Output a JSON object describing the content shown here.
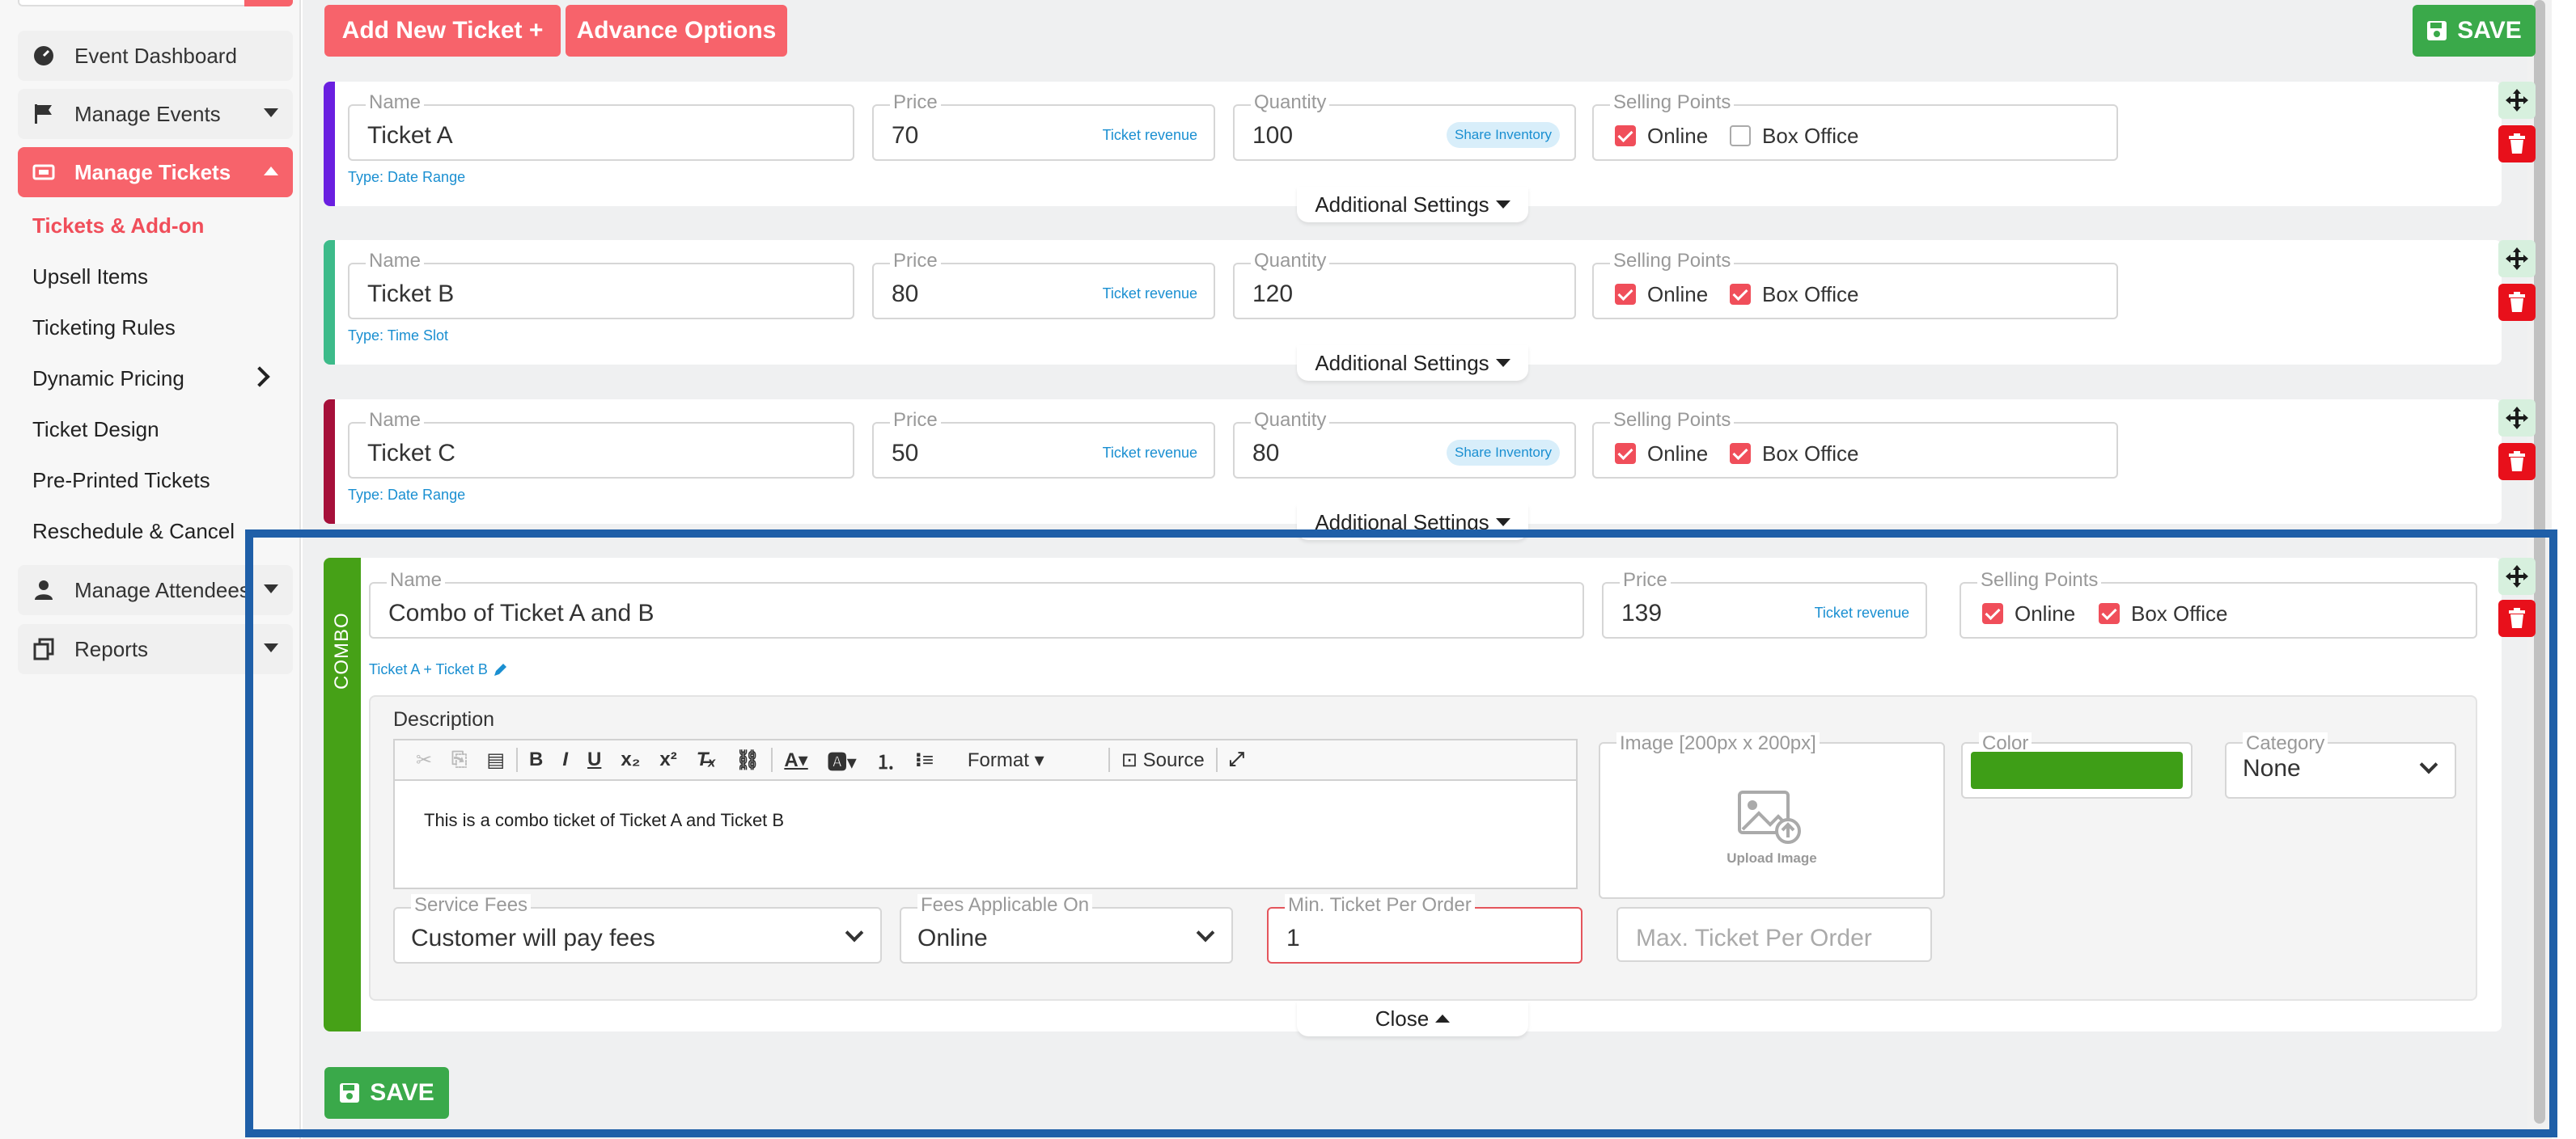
{
  "sidebar": {
    "items": [
      {
        "label": "Event Dashboard",
        "icon": "dashboard-icon"
      },
      {
        "label": "Manage Events",
        "icon": "flag-icon"
      },
      {
        "label": "Manage Tickets",
        "icon": "ticket-icon"
      },
      {
        "label": "Manage Attendees",
        "icon": "user-icon"
      },
      {
        "label": "Reports",
        "icon": "copy-icon"
      }
    ],
    "sub_items": [
      "Tickets & Add-on",
      "Upsell Items",
      "Ticketing Rules",
      "Dynamic Pricing",
      "Ticket Design",
      "Pre-Printed Tickets",
      "Reschedule & Cancel"
    ]
  },
  "toolbar": {
    "add_ticket": "Add New Ticket +",
    "advance": "Advance Options",
    "save": "SAVE"
  },
  "labels": {
    "name": "Name",
    "price": "Price",
    "quantity": "Quantity",
    "selling_points": "Selling Points",
    "online": "Online",
    "box_office": "Box Office",
    "ticket_revenue": "Ticket revenue",
    "share_inventory": "Share Inventory",
    "additional_settings": "Additional Settings"
  },
  "tickets": [
    {
      "name": "Ticket A",
      "price": "70",
      "quantity": "100",
      "type": "Type: Date Range",
      "online": true,
      "box_office": false,
      "color": "#6a1fe0"
    },
    {
      "name": "Ticket B",
      "price": "80",
      "quantity": "120",
      "type": "Type: Time Slot",
      "online": true,
      "box_office": true,
      "color": "#3dbb8a"
    },
    {
      "name": "Ticket C",
      "price": "50",
      "quantity": "80",
      "type": "Type: Date Range",
      "online": true,
      "box_office": true,
      "color": "#a6103a"
    }
  ],
  "combo": {
    "badge": "COMBO",
    "name": "Combo of Ticket A and B",
    "price": "139",
    "components": "Ticket A + Ticket B",
    "description_label": "Description",
    "description": "This is a combo ticket of Ticket A and Ticket B",
    "editor": {
      "format": "Format",
      "source": "Source"
    },
    "image_label": "Image [200px x 200px]",
    "upload": "Upload Image",
    "color_label": "Color",
    "color": "#3e9e17",
    "category_label": "Category",
    "category": "None",
    "service_fees_label": "Service Fees",
    "service_fees": "Customer will pay fees",
    "fees_on_label": "Fees Applicable On",
    "fees_on": "Online",
    "min_label": "Min. Ticket Per Order",
    "min": "1",
    "max_placeholder": "Max. Ticket Per Order",
    "close": "Close"
  },
  "colors": {
    "accent": "#f7636b",
    "save": "#3aa94a",
    "highlight": "#1f5fa8"
  }
}
